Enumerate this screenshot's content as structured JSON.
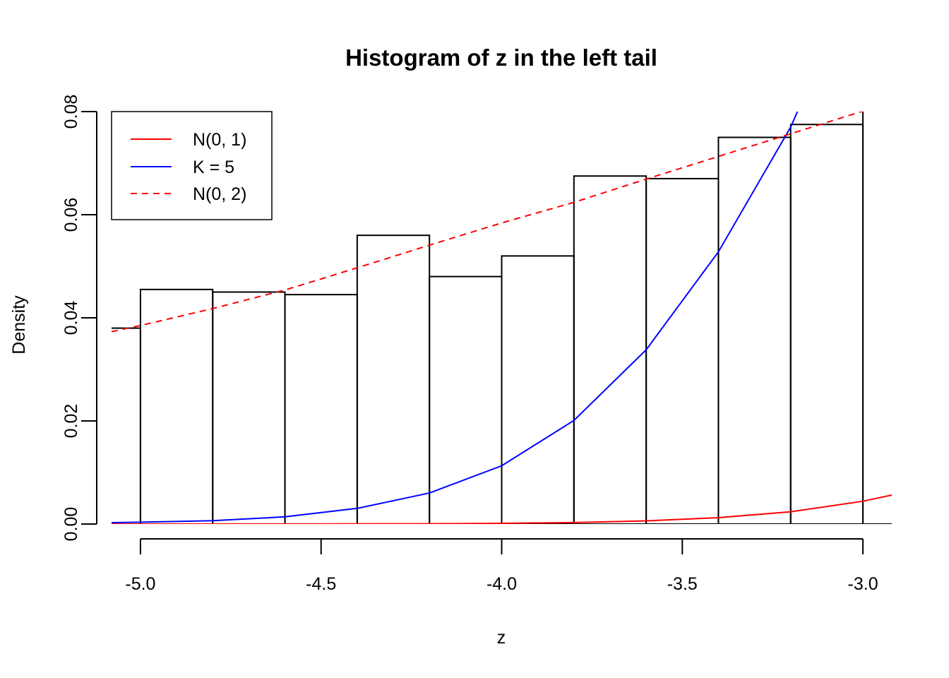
{
  "chart_data": {
    "type": "bar",
    "title": "Histogram of z in the left tail",
    "xlabel": "z",
    "ylabel": "Density",
    "xlim": [
      -5.08,
      -2.92
    ],
    "ylim": [
      0,
      0.08
    ],
    "x_ticks": [
      -5.0,
      -4.5,
      -4.0,
      -3.5,
      -3.0
    ],
    "x_tick_labels": [
      "-5.0",
      "-4.5",
      "-4.0",
      "-3.5",
      "-3.0"
    ],
    "y_ticks": [
      0.0,
      0.02,
      0.04,
      0.06,
      0.08
    ],
    "y_tick_labels": [
      "0.00",
      "0.02",
      "0.04",
      "0.06",
      "0.08"
    ],
    "bins": [
      {
        "x0": -5.2,
        "x1": -5.0,
        "density": 0.038
      },
      {
        "x0": -5.0,
        "x1": -4.8,
        "density": 0.0455
      },
      {
        "x0": -4.8,
        "x1": -4.6,
        "density": 0.045
      },
      {
        "x0": -4.6,
        "x1": -4.4,
        "density": 0.0445
      },
      {
        "x0": -4.4,
        "x1": -4.2,
        "density": 0.056
      },
      {
        "x0": -4.2,
        "x1": -4.0,
        "density": 0.048
      },
      {
        "x0": -4.0,
        "x1": -3.8,
        "density": 0.052
      },
      {
        "x0": -3.8,
        "x1": -3.6,
        "density": 0.0675
      },
      {
        "x0": -3.6,
        "x1": -3.4,
        "density": 0.067
      },
      {
        "x0": -3.4,
        "x1": -3.2,
        "density": 0.075
      },
      {
        "x0": -3.2,
        "x1": -3.0,
        "density": 0.0775
      },
      {
        "x0": -3.0,
        "x1": -2.8,
        "density": 0.103
      }
    ],
    "series": [
      {
        "name": "N(0, 1)",
        "color": "#ff0000",
        "style": "solid",
        "x": [
          -5.08,
          -5.0,
          -4.8,
          -4.6,
          -4.4,
          -4.2,
          -4.0,
          -3.8,
          -3.6,
          -3.4,
          -3.2,
          -3.0,
          -2.92
        ],
        "y": [
          9e-07,
          1.5e-06,
          4e-06,
          1.01e-05,
          2.46e-05,
          5.84e-05,
          0.000134,
          0.000292,
          0.000612,
          0.00123,
          0.00238,
          0.00443,
          0.00562
        ]
      },
      {
        "name": "K = 5",
        "color": "#0000ff",
        "style": "solid",
        "x": [
          -5.08,
          -5.0,
          -4.8,
          -4.6,
          -4.4,
          -4.2,
          -4.0,
          -3.8,
          -3.6,
          -3.4,
          -3.2,
          -3.15
        ],
        "y": [
          0.00028,
          0.00035,
          0.00064,
          0.0014,
          0.00304,
          0.00601,
          0.0113,
          0.0201,
          0.0338,
          0.0528,
          0.077,
          0.085
        ]
      },
      {
        "name": "N(0, 2)",
        "color": "#ff0000",
        "style": "dashed",
        "x": [
          -5.08,
          -5.0,
          -4.8,
          -4.6,
          -4.4,
          -4.2,
          -4.0,
          -3.8,
          -3.6,
          -3.4,
          -3.2,
          -3.0,
          -2.92
        ],
        "y": [
          0.0373,
          0.0385,
          0.0418,
          0.0454,
          0.0497,
          0.0541,
          0.0584,
          0.0624,
          0.0669,
          0.0713,
          0.0757,
          0.0801,
          0.0818
        ]
      }
    ],
    "legend": {
      "position": "top-left",
      "entries": [
        "N(0, 1)",
        "K = 5",
        "N(0, 2)"
      ]
    },
    "grid": false
  }
}
